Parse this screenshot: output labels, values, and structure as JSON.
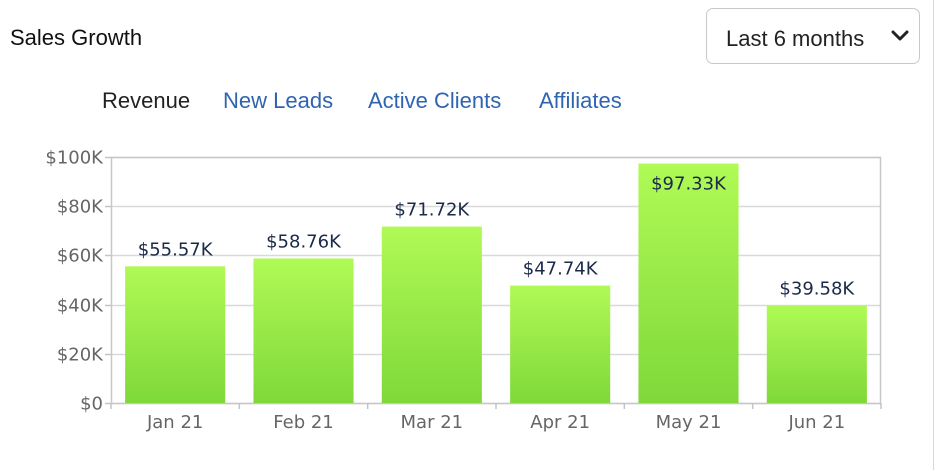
{
  "header": {
    "title": "Sales Growth",
    "period_select": {
      "value": "Last 6 months"
    }
  },
  "tabs": [
    {
      "label": "Revenue",
      "active": true
    },
    {
      "label": "New Leads",
      "active": false
    },
    {
      "label": "Active Clients",
      "active": false
    },
    {
      "label": "Affiliates",
      "active": false
    }
  ],
  "colors": {
    "bar_top": "#b0fa55",
    "bar_bottom": "#7fd83a",
    "link": "#2f64b0",
    "grid": "#d9d9d9"
  },
  "chart_data": {
    "type": "bar",
    "title": "",
    "xlabel": "",
    "ylabel": "",
    "categories": [
      "Jan 21",
      "Feb 21",
      "Mar 21",
      "Apr 21",
      "May 21",
      "Jun 21"
    ],
    "values": [
      55.57,
      58.76,
      71.72,
      47.74,
      97.33,
      39.58
    ],
    "value_labels": [
      "$55.57K",
      "$58.76K",
      "$71.72K",
      "$47.74K",
      "$97.33K",
      "$39.58K"
    ],
    "unit": "thousands of dollars",
    "ylim": [
      0,
      100
    ],
    "y_ticks": [
      0,
      20,
      40,
      60,
      80,
      100
    ],
    "y_tick_labels": [
      "$0",
      "$20K",
      "$40K",
      "$60K",
      "$80K",
      "$100K"
    ],
    "grid": true,
    "legend": "none"
  }
}
